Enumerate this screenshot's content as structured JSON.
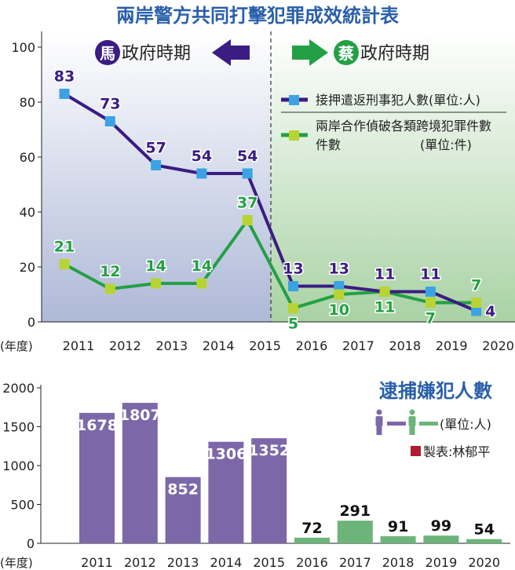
{
  "chart_data": [
    {
      "type": "line",
      "title": "兩岸警方共同打擊犯罪成效統計表",
      "xlabel_prefix": "(年度)",
      "x_ticks": [
        "2011",
        "2012",
        "2013",
        "2014",
        "2015",
        "2016",
        "2017",
        "2018",
        "2019",
        "2020"
      ],
      "ylim": [
        0,
        100
      ],
      "y_ticks": [
        0,
        20,
        40,
        60,
        80,
        100
      ],
      "categories": [
        "2011",
        "2012",
        "2013",
        "2014",
        "2015",
        "2016",
        "2017",
        "2018",
        "2019",
        "2020"
      ],
      "series": [
        {
          "name": "接押遣返刑事犯人數(單位:人)",
          "values": [
            83,
            73,
            57,
            54,
            54,
            13,
            13,
            11,
            11,
            4
          ],
          "line_color": "#3b1c82",
          "marker_color": "#3ba3e3"
        },
        {
          "name": "兩岸合作偵破各類跨境犯罪件數",
          "unit": "(單位:件)",
          "values": [
            21,
            12,
            14,
            14,
            37,
            5,
            10,
            11,
            7,
            7
          ],
          "line_color": "#23a044",
          "marker_color": "#b8d432"
        }
      ],
      "periods": [
        {
          "badge": "馬",
          "label": "政府時期",
          "color": "#3b1c82",
          "bg": "#aeb9d8"
        },
        {
          "badge": "蔡",
          "label": "政府時期",
          "color": "#23a044",
          "bg": "#a9d2a4"
        }
      ],
      "divider_at": "2015"
    },
    {
      "type": "bar",
      "title": "逮捕嫌犯人數",
      "unit": "(單位:人)",
      "xlabel_prefix": "(年度)",
      "categories": [
        "2011",
        "2012",
        "2013",
        "2014",
        "2015",
        "2016",
        "2017",
        "2018",
        "2019",
        "2020"
      ],
      "values": [
        1678,
        1807,
        852,
        1306,
        1352,
        72,
        291,
        91,
        99,
        54
      ],
      "ylim": [
        0,
        2000
      ],
      "y_ticks": [
        0,
        500,
        1000,
        1500,
        2000
      ],
      "colors": {
        "ma": "#7c68a9",
        "tsai": "#6cb47a"
      },
      "credit": "製表:林郁平"
    }
  ]
}
